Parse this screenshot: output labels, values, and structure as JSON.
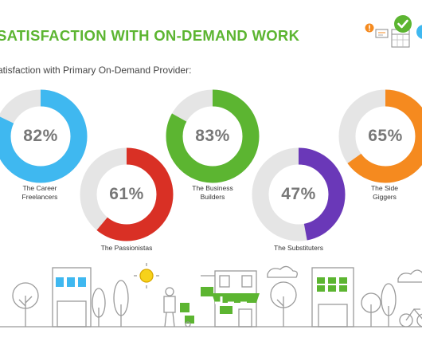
{
  "title": "SATISFACTION WITH ON-DEMAND WORK",
  "subtitle": "atisfaction with Primary On-Demand Provider:",
  "icons": {
    "alert": "alert-icon",
    "check": "checkmark-badge-icon",
    "form": "form-icon",
    "calendar": "calendar-icon",
    "sun": "sun-icon"
  },
  "colors": {
    "title": "#5cb531",
    "track": "#e5e5e5"
  },
  "chart_data": {
    "type": "pie",
    "subtitle": "atisfaction with Primary On-Demand Provider:",
    "unit": "%",
    "series": [
      {
        "name": "The Career Freelancers",
        "label_lines": [
          "The Career",
          "Freelancers"
        ],
        "value": 82,
        "display": "82%",
        "color": "#3fb8f0"
      },
      {
        "name": "The Passionistas",
        "label_lines": [
          "The Passionistas"
        ],
        "value": 61,
        "display": "61%",
        "color": "#d93025"
      },
      {
        "name": "The Business Builders",
        "label_lines": [
          "The Business",
          "Builders"
        ],
        "value": 83,
        "display": "83%",
        "color": "#5cb531"
      },
      {
        "name": "The Substituters",
        "label_lines": [
          "The Substituters"
        ],
        "value": 47,
        "display": "47%",
        "color": "#6a38b8"
      },
      {
        "name": "The Side Giggers",
        "label_lines": [
          "The Side",
          "Giggers"
        ],
        "value": 65,
        "display": "65%",
        "color": "#f58a1f"
      }
    ]
  }
}
